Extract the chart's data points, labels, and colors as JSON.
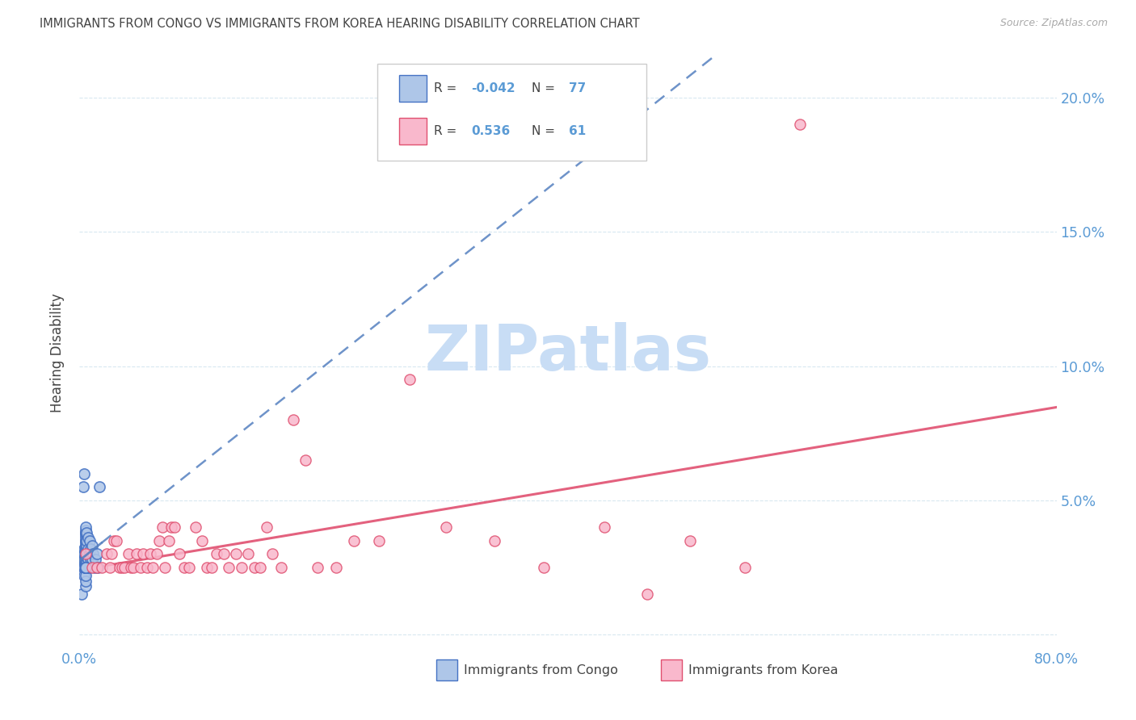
{
  "title": "IMMIGRANTS FROM CONGO VS IMMIGRANTS FROM KOREA HEARING DISABILITY CORRELATION CHART",
  "source": "Source: ZipAtlas.com",
  "ylabel": "Hearing Disability",
  "xlim": [
    0.0,
    0.8
  ],
  "ylim": [
    -0.005,
    0.215
  ],
  "congo_R": -0.042,
  "congo_N": 77,
  "korea_R": 0.536,
  "korea_N": 61,
  "congo_color": "#aec6e8",
  "korea_color": "#f9b8cc",
  "congo_edge_color": "#4472c4",
  "korea_edge_color": "#e05070",
  "congo_line_color": "#5580c0",
  "korea_line_color": "#e05070",
  "watermark": "ZIPatlas",
  "watermark_color": "#c8ddf5",
  "background_color": "#ffffff",
  "legend_label_congo": "Immigrants from Congo",
  "legend_label_korea": "Immigrants from Korea",
  "congo_scatter_x": [
    0.002,
    0.003,
    0.003,
    0.003,
    0.004,
    0.004,
    0.004,
    0.004,
    0.004,
    0.005,
    0.005,
    0.005,
    0.005,
    0.005,
    0.005,
    0.005,
    0.005,
    0.005,
    0.005,
    0.005,
    0.005,
    0.005,
    0.005,
    0.005,
    0.005,
    0.005,
    0.005,
    0.005,
    0.005,
    0.005,
    0.005,
    0.005,
    0.005,
    0.005,
    0.005,
    0.005,
    0.005,
    0.005,
    0.005,
    0.005,
    0.005,
    0.005,
    0.005,
    0.005,
    0.006,
    0.006,
    0.006,
    0.006,
    0.006,
    0.006,
    0.006,
    0.007,
    0.007,
    0.007,
    0.007,
    0.008,
    0.008,
    0.008,
    0.009,
    0.009,
    0.01,
    0.01,
    0.011,
    0.012,
    0.013,
    0.014,
    0.015,
    0.016,
    0.003,
    0.004,
    0.005,
    0.005,
    0.005,
    0.005,
    0.005,
    0.005,
    0.005
  ],
  "congo_scatter_y": [
    0.015,
    0.025,
    0.028,
    0.03,
    0.022,
    0.025,
    0.028,
    0.03,
    0.032,
    0.018,
    0.02,
    0.022,
    0.025,
    0.025,
    0.025,
    0.025,
    0.026,
    0.027,
    0.028,
    0.028,
    0.029,
    0.03,
    0.03,
    0.03,
    0.03,
    0.031,
    0.032,
    0.032,
    0.033,
    0.034,
    0.035,
    0.035,
    0.036,
    0.037,
    0.038,
    0.038,
    0.039,
    0.04,
    0.025,
    0.025,
    0.025,
    0.025,
    0.025,
    0.025,
    0.025,
    0.027,
    0.029,
    0.031,
    0.033,
    0.035,
    0.038,
    0.025,
    0.028,
    0.032,
    0.036,
    0.025,
    0.03,
    0.035,
    0.028,
    0.032,
    0.028,
    0.033,
    0.03,
    0.025,
    0.028,
    0.03,
    0.025,
    0.055,
    0.055,
    0.06,
    0.025,
    0.025,
    0.025,
    0.025,
    0.025,
    0.025,
    0.025
  ],
  "korea_scatter_x": [
    0.005,
    0.01,
    0.014,
    0.018,
    0.022,
    0.025,
    0.026,
    0.028,
    0.03,
    0.033,
    0.035,
    0.037,
    0.04,
    0.042,
    0.044,
    0.047,
    0.05,
    0.052,
    0.055,
    0.058,
    0.06,
    0.063,
    0.065,
    0.068,
    0.07,
    0.073,
    0.075,
    0.078,
    0.082,
    0.086,
    0.09,
    0.095,
    0.1,
    0.104,
    0.108,
    0.112,
    0.118,
    0.122,
    0.128,
    0.133,
    0.138,
    0.143,
    0.148,
    0.153,
    0.158,
    0.165,
    0.175,
    0.185,
    0.195,
    0.21,
    0.225,
    0.245,
    0.27,
    0.3,
    0.34,
    0.38,
    0.43,
    0.465,
    0.5,
    0.545,
    0.59
  ],
  "korea_scatter_y": [
    0.03,
    0.025,
    0.025,
    0.025,
    0.03,
    0.025,
    0.03,
    0.035,
    0.035,
    0.025,
    0.025,
    0.025,
    0.03,
    0.025,
    0.025,
    0.03,
    0.025,
    0.03,
    0.025,
    0.03,
    0.025,
    0.03,
    0.035,
    0.04,
    0.025,
    0.035,
    0.04,
    0.04,
    0.03,
    0.025,
    0.025,
    0.04,
    0.035,
    0.025,
    0.025,
    0.03,
    0.03,
    0.025,
    0.03,
    0.025,
    0.03,
    0.025,
    0.025,
    0.04,
    0.03,
    0.025,
    0.08,
    0.065,
    0.025,
    0.025,
    0.035,
    0.035,
    0.095,
    0.04,
    0.035,
    0.025,
    0.04,
    0.015,
    0.035,
    0.025,
    0.19
  ],
  "title_color": "#444444",
  "axis_color": "#5b9bd5",
  "grid_color": "#d8e8f0",
  "legend_R_color": "#5b9bd5",
  "legend_text_color": "#444444"
}
